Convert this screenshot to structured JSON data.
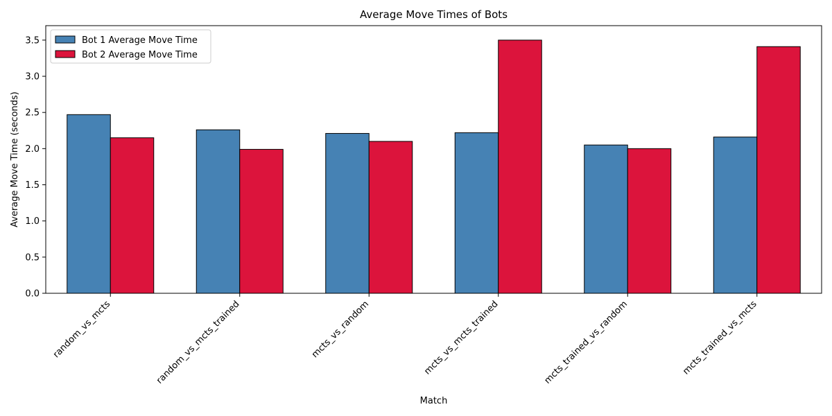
{
  "chart_data": {
    "type": "bar",
    "title": "Average Move Times of Bots",
    "xlabel": "Match",
    "ylabel": "Average Move Time (seconds)",
    "ylim": [
      0,
      3.7
    ],
    "yticks": [
      0.0,
      0.5,
      1.0,
      1.5,
      2.0,
      2.5,
      3.0,
      3.5
    ],
    "ytick_labels": [
      "0.0",
      "0.5",
      "1.0",
      "1.5",
      "2.0",
      "2.5",
      "3.0",
      "3.5"
    ],
    "categories": [
      "random_vs_mcts",
      "random_vs_mcts_trained",
      "mcts_vs_random",
      "mcts_vs_mcts_trained",
      "mcts_trained_vs_random",
      "mcts_trained_vs_mcts"
    ],
    "series": [
      {
        "name": "Bot 1 Average Move Time",
        "color": "#4682b4",
        "values": [
          2.47,
          2.26,
          2.21,
          2.22,
          2.05,
          2.16
        ]
      },
      {
        "name": "Bot 2 Average Move Time",
        "color": "#dc143c",
        "values": [
          2.15,
          1.99,
          2.1,
          3.5,
          2.0,
          3.41
        ]
      }
    ],
    "grid": false,
    "legend_position": "top-left"
  }
}
